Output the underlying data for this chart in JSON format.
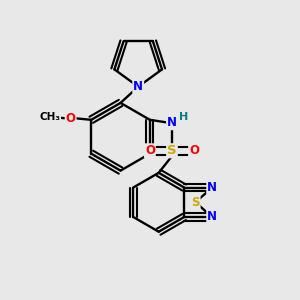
{
  "background_color": "#e8e8e8",
  "bond_color": "#000000",
  "atom_colors": {
    "N": "#0000ff",
    "O": "#ff0000",
    "S": "#ccaa00",
    "H": "#008080",
    "C": "#000000"
  },
  "figsize": [
    3.0,
    3.0
  ],
  "dpi": 100
}
